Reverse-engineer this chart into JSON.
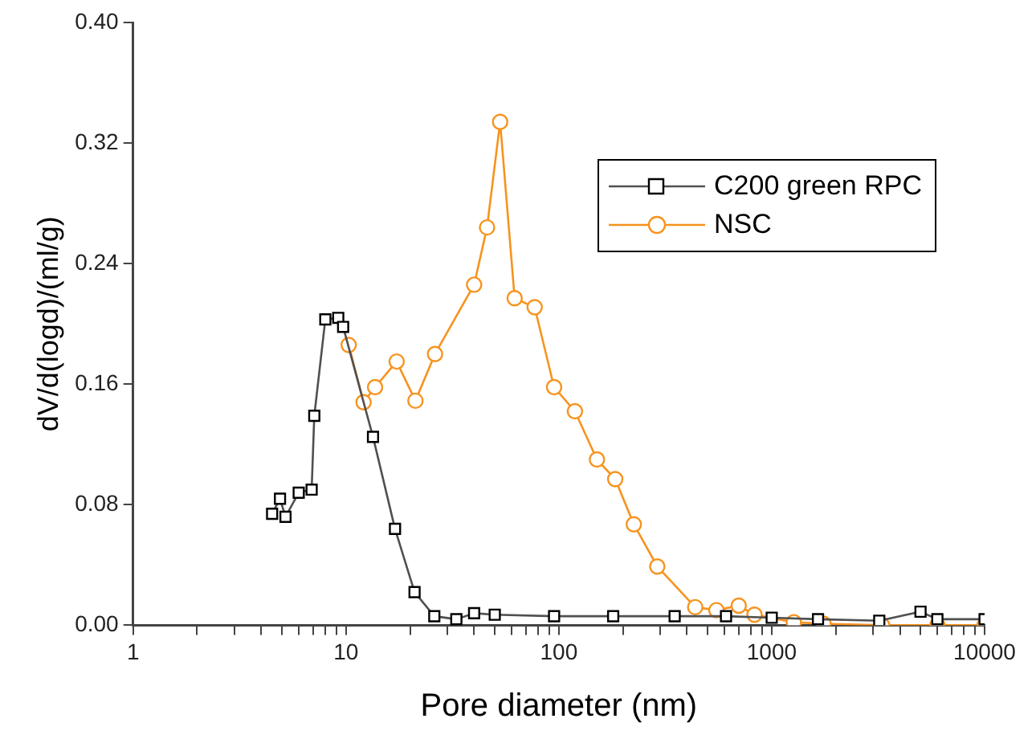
{
  "chart_data": {
    "type": "line",
    "xlabel": "Pore diameter (nm)",
    "ylabel": "dV/d(logd)/(ml/g)",
    "log": "x",
    "xlim": [
      1,
      10000
    ],
    "ylim": [
      0,
      0.4
    ],
    "xticks": [
      1,
      {
        "value": 2,
        "label": null
      },
      {
        "value": 3,
        "label": null
      },
      {
        "value": 4,
        "label": null
      },
      {
        "value": 5,
        "label": null
      },
      {
        "value": 6,
        "label": null
      },
      {
        "value": 7,
        "label": null
      },
      {
        "value": 8,
        "label": null
      },
      {
        "value": 9,
        "label": null
      },
      10,
      {
        "value": 20,
        "label": null
      },
      {
        "value": 30,
        "label": null
      },
      {
        "value": 40,
        "label": null
      },
      {
        "value": 50,
        "label": null
      },
      {
        "value": 60,
        "label": null
      },
      {
        "value": 70,
        "label": null
      },
      {
        "value": 80,
        "label": null
      },
      {
        "value": 90,
        "label": null
      },
      100,
      {
        "value": 200,
        "label": null
      },
      {
        "value": 300,
        "label": null
      },
      {
        "value": 400,
        "label": null
      },
      {
        "value": 500,
        "label": null
      },
      {
        "value": 600,
        "label": null
      },
      {
        "value": 700,
        "label": null
      },
      {
        "value": 800,
        "label": null
      },
      {
        "value": 900,
        "label": null
      },
      1000,
      {
        "value": 2000,
        "label": null
      },
      {
        "value": 3000,
        "label": null
      },
      {
        "value": 4000,
        "label": null
      },
      {
        "value": 5000,
        "label": null
      },
      {
        "value": 6000,
        "label": null
      },
      {
        "value": 7000,
        "label": null
      },
      {
        "value": 8000,
        "label": null
      },
      {
        "value": 9000,
        "label": null
      },
      10000
    ],
    "yticks": [
      {
        "value": 0,
        "label": "0.00"
      },
      {
        "value": 0.08,
        "label": "0.08"
      },
      {
        "value": 0.16,
        "label": "0.16"
      },
      {
        "value": 0.24,
        "label": "0.24"
      },
      {
        "value": 0.32,
        "label": "0.32"
      },
      {
        "value": 0.4,
        "label": "0.40"
      }
    ],
    "grid": false,
    "legend": "top right",
    "series": [
      {
        "name": "C200 green RPC",
        "color": "#505050",
        "marker": "square",
        "x": [
          4.5,
          4.9,
          5.2,
          6.0,
          6.9,
          7.1,
          8.0,
          9.2,
          9.7,
          13.4,
          17,
          21,
          26,
          33,
          40,
          50,
          95,
          180,
          350,
          610,
          1000,
          1650,
          3200,
          5000,
          6000,
          10000
        ],
        "values": [
          0.074,
          0.084,
          0.072,
          0.088,
          0.09,
          0.139,
          0.203,
          0.204,
          0.198,
          0.125,
          0.064,
          0.022,
          0.006,
          0.004,
          0.008,
          0.007,
          0.006,
          0.006,
          0.006,
          0.006,
          0.005,
          0.004,
          0.003,
          0.009,
          0.004,
          0.004
        ]
      },
      {
        "name": "NSC",
        "color": "#f7931e",
        "marker": "circle",
        "x": [
          10.3,
          12.1,
          13.7,
          17.3,
          21.2,
          26.2,
          40,
          46,
          53,
          62,
          77,
          95,
          119,
          151,
          184,
          225,
          290,
          437,
          550,
          700,
          830,
          1270,
          1750,
          3300,
          6000,
          10000
        ],
        "values": [
          0.186,
          0.148,
          0.158,
          0.175,
          0.149,
          0.18,
          0.226,
          0.264,
          0.334,
          0.217,
          0.211,
          0.158,
          0.142,
          0.11,
          0.097,
          0.067,
          0.039,
          0.012,
          0.01,
          0.013,
          0.007,
          0.002,
          0.001,
          0,
          0,
          0
        ]
      }
    ]
  }
}
